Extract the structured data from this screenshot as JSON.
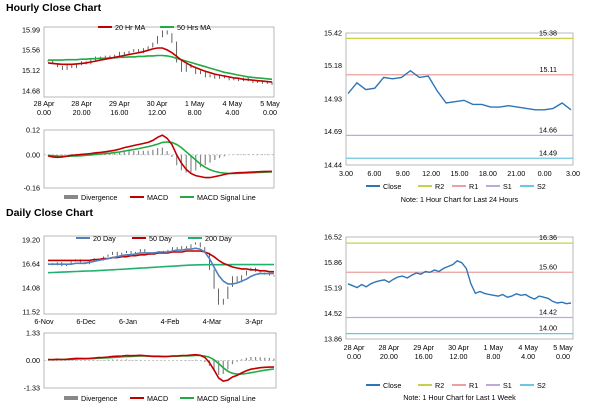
{
  "sections": {
    "hourly_title": "Hourly Close Chart",
    "daily_title": "Daily Close Chart"
  },
  "colors": {
    "price": "#222222",
    "ma_short": "#c00000",
    "ma_long": "#22aa44",
    "ma_200": "#20b070",
    "ma_20d": "#4f81bd",
    "close": "#2e75b6",
    "r2": "#c6d34a",
    "r1": "#e8a0a0",
    "s1": "#c0a8d8",
    "s2": "#6cc8e0",
    "divergence": "#888888",
    "macd": "#c00000",
    "signal": "#22aa44"
  },
  "chart_data": [
    {
      "id": "hourly-ma",
      "type": "line",
      "title": "Hourly Close Chart",
      "legend": [
        "20 Hr MA",
        "50 Hrs MA"
      ],
      "y_ticks": [
        "15.99",
        "15.56",
        "15.12",
        "14.68"
      ],
      "ylim": [
        14.55,
        16.05
      ],
      "x_labels": [
        [
          "28 Apr",
          "0.00"
        ],
        [
          "28 Apr",
          "20.00"
        ],
        [
          "29 Apr",
          "16.00"
        ],
        [
          "30 Apr",
          "12.00"
        ],
        [
          "1 May",
          "8.00"
        ],
        [
          "4 May",
          "4.00"
        ],
        [
          "5 May",
          "0.00"
        ]
      ],
      "price": [
        15.32,
        15.26,
        15.2,
        15.14,
        15.22,
        15.18,
        15.24,
        15.3,
        15.26,
        15.34,
        15.4,
        15.36,
        15.42,
        15.38,
        15.44,
        15.5,
        15.46,
        15.52,
        15.56,
        15.5,
        15.58,
        15.62,
        15.7,
        15.84,
        15.96,
        15.9,
        15.72,
        15.3,
        15.1,
        15.24,
        15.18,
        15.05,
        15.1,
        14.98,
        15.02,
        14.95,
        15.0,
        14.96,
        14.92,
        14.94,
        14.9,
        14.95,
        14.9,
        14.86,
        14.88,
        14.84,
        14.86,
        14.82
      ],
      "ma20": [
        15.28,
        15.27,
        15.26,
        15.25,
        15.25,
        15.25,
        15.26,
        15.27,
        15.28,
        15.3,
        15.32,
        15.34,
        15.36,
        15.38,
        15.4,
        15.42,
        15.44,
        15.46,
        15.48,
        15.5,
        15.52,
        15.55,
        15.58,
        15.6,
        15.6,
        15.56,
        15.5,
        15.42,
        15.34,
        15.28,
        15.22,
        15.18,
        15.14,
        15.1,
        15.07,
        15.04,
        15.02,
        15.0,
        14.98,
        14.96,
        14.95,
        14.93,
        14.92,
        14.91,
        14.9,
        14.89,
        14.88,
        14.87
      ],
      "ma50": [
        15.34,
        15.34,
        15.34,
        15.34,
        15.35,
        15.35,
        15.35,
        15.36,
        15.36,
        15.37,
        15.37,
        15.38,
        15.38,
        15.39,
        15.39,
        15.4,
        15.4,
        15.41,
        15.41,
        15.42,
        15.42,
        15.43,
        15.43,
        15.44,
        15.44,
        15.43,
        15.41,
        15.38,
        15.35,
        15.32,
        15.29,
        15.26,
        15.23,
        15.2,
        15.17,
        15.14,
        15.11,
        15.08,
        15.06,
        15.04,
        15.02,
        15.0,
        14.98,
        14.97,
        14.96,
        14.95,
        14.94,
        14.93
      ]
    },
    {
      "id": "hourly-macd",
      "type": "line",
      "legend": [
        "Divergence",
        "MACD",
        "MACD Signal Line"
      ],
      "y_ticks": [
        "0.12",
        "0.00",
        "-0.16"
      ],
      "ylim": [
        -0.16,
        0.12
      ],
      "macd": [
        -0.005,
        -0.01,
        -0.012,
        -0.01,
        -0.006,
        -0.002,
        0.0,
        0.002,
        0.004,
        0.006,
        0.01,
        0.012,
        0.015,
        0.018,
        0.022,
        0.028,
        0.035,
        0.04,
        0.045,
        0.05,
        0.055,
        0.06,
        0.07,
        0.085,
        0.095,
        0.08,
        0.05,
        0.0,
        -0.04,
        -0.07,
        -0.09,
        -0.1,
        -0.105,
        -0.11,
        -0.11,
        -0.105,
        -0.1,
        -0.095,
        -0.09,
        -0.088,
        -0.086,
        -0.085,
        -0.084,
        -0.083,
        -0.082,
        -0.081,
        -0.08,
        -0.08
      ],
      "signal": [
        -0.002,
        -0.004,
        -0.006,
        -0.007,
        -0.007,
        -0.006,
        -0.005,
        -0.004,
        -0.002,
        0.0,
        0.002,
        0.004,
        0.006,
        0.008,
        0.011,
        0.014,
        0.018,
        0.022,
        0.026,
        0.03,
        0.035,
        0.04,
        0.045,
        0.052,
        0.06,
        0.062,
        0.06,
        0.05,
        0.035,
        0.015,
        -0.005,
        -0.025,
        -0.045,
        -0.06,
        -0.072,
        -0.08,
        -0.085,
        -0.088,
        -0.09,
        -0.09,
        -0.089,
        -0.088,
        -0.087,
        -0.086,
        -0.085,
        -0.084,
        -0.083,
        -0.082
      ]
    },
    {
      "id": "hourly-levels",
      "type": "line",
      "title": "Note: 1 Hour Chart for Last 24 Hours",
      "y_ticks": [
        "15.42",
        "15.18",
        "14.93",
        "14.69",
        "14.44"
      ],
      "ylim": [
        14.44,
        15.42
      ],
      "x_labels": [
        "3.00",
        "6.00",
        "9.00",
        "12.00",
        "15.00",
        "18.00",
        "21.00",
        "0.00",
        "3.00"
      ],
      "legend": [
        "Close",
        "R2",
        "R1",
        "S1",
        "S2"
      ],
      "levels": {
        "R2": 15.38,
        "R1": 15.11,
        "S1": 14.66,
        "S2": 14.49
      },
      "level_labels": {
        "R2": "15.38",
        "R1": "15.11",
        "S1": "14.66",
        "S2": "14.49"
      },
      "close": [
        14.97,
        15.05,
        15.0,
        15.01,
        15.09,
        15.08,
        15.09,
        15.14,
        15.09,
        15.1,
        14.99,
        14.9,
        14.91,
        14.92,
        14.89,
        14.89,
        14.87,
        14.87,
        14.88,
        14.87,
        14.86,
        14.85,
        14.85,
        14.86,
        14.9,
        14.85
      ]
    },
    {
      "id": "daily-ma",
      "type": "line",
      "title": "Daily Close Chart",
      "legend": [
        "20 Day",
        "50 Day",
        "200 Day"
      ],
      "y_ticks": [
        "19.20",
        "16.64",
        "14.08",
        "11.52"
      ],
      "ylim": [
        11.3,
        19.6
      ],
      "x_labels": [
        "6-Nov",
        "6-Dec",
        "6-Jan",
        "4-Feb",
        "4-Mar",
        "3-Apr"
      ],
      "price": [
        16.7,
        16.5,
        16.8,
        16.4,
        16.6,
        16.9,
        17.1,
        16.8,
        16.6,
        16.9,
        17.2,
        17.0,
        17.4,
        17.6,
        17.9,
        17.5,
        17.8,
        18.0,
        17.7,
        17.9,
        18.2,
        17.8,
        17.6,
        17.9,
        18.0,
        17.8,
        18.1,
        18.4,
        18.2,
        18.5,
        18.3,
        18.7,
        18.9,
        18.4,
        17.8,
        16.0,
        14.0,
        12.3,
        12.9,
        14.2,
        15.3,
        14.7,
        15.4,
        15.9,
        16.2,
        15.8,
        15.7,
        15.5,
        15.4,
        15.3
      ],
      "ma20": [
        16.6,
        16.6,
        16.6,
        16.6,
        16.6,
        16.6,
        16.7,
        16.7,
        16.7,
        16.8,
        16.9,
        17.0,
        17.1,
        17.2,
        17.3,
        17.4,
        17.5,
        17.6,
        17.6,
        17.7,
        17.8,
        17.8,
        17.8,
        17.8,
        17.9,
        17.9,
        17.9,
        18.0,
        18.1,
        18.1,
        18.2,
        18.2,
        18.3,
        18.2,
        17.9,
        17.2,
        16.3,
        15.4,
        14.8,
        14.5,
        14.5,
        14.6,
        14.8,
        15.0,
        15.3,
        15.5,
        15.6,
        15.6,
        15.6,
        15.6
      ],
      "ma50": [
        17.0,
        17.0,
        17.0,
        17.0,
        17.0,
        17.0,
        17.0,
        17.0,
        17.0,
        17.0,
        17.1,
        17.1,
        17.2,
        17.2,
        17.3,
        17.3,
        17.4,
        17.4,
        17.5,
        17.5,
        17.6,
        17.6,
        17.7,
        17.7,
        17.8,
        17.8,
        17.8,
        17.9,
        17.9,
        17.9,
        18.0,
        18.0,
        18.0,
        18.0,
        17.9,
        17.7,
        17.4,
        17.0,
        16.7,
        16.5,
        16.3,
        16.2,
        16.1,
        16.1,
        16.0,
        16.0,
        15.9,
        15.9,
        15.8,
        15.8
      ],
      "ma200": [
        15.7,
        15.72,
        15.74,
        15.76,
        15.78,
        15.8,
        15.82,
        15.84,
        15.86,
        15.88,
        15.9,
        15.92,
        15.95,
        15.98,
        16.0,
        16.03,
        16.06,
        16.09,
        16.12,
        16.15,
        16.18,
        16.21,
        16.24,
        16.27,
        16.3,
        16.33,
        16.36,
        16.39,
        16.42,
        16.45,
        16.48,
        16.5,
        16.52,
        16.54,
        16.55,
        16.55,
        16.55,
        16.55,
        16.55,
        16.55,
        16.56,
        16.56,
        16.56,
        16.56,
        16.56,
        16.56,
        16.56,
        16.56,
        16.56,
        16.56
      ]
    },
    {
      "id": "daily-macd",
      "type": "line",
      "legend": [
        "Divergence",
        "MACD",
        "MACD Signal Line"
      ],
      "y_ticks": [
        "1.33",
        "0.00",
        "-1.33"
      ],
      "ylim": [
        -1.33,
        1.33
      ],
      "macd": [
        0.05,
        0.04,
        0.06,
        0.05,
        0.06,
        0.08,
        0.1,
        0.1,
        0.09,
        0.1,
        0.12,
        0.14,
        0.15,
        0.17,
        0.2,
        0.21,
        0.22,
        0.24,
        0.23,
        0.24,
        0.25,
        0.23,
        0.21,
        0.2,
        0.2,
        0.19,
        0.2,
        0.22,
        0.22,
        0.24,
        0.24,
        0.26,
        0.28,
        0.25,
        0.15,
        -0.1,
        -0.45,
        -0.85,
        -1.0,
        -0.95,
        -0.8,
        -0.72,
        -0.6,
        -0.5,
        -0.42,
        -0.38,
        -0.35,
        -0.33,
        -0.32,
        -0.32
      ],
      "signal": [
        0.04,
        0.04,
        0.05,
        0.05,
        0.05,
        0.06,
        0.07,
        0.08,
        0.08,
        0.09,
        0.1,
        0.11,
        0.12,
        0.13,
        0.15,
        0.16,
        0.18,
        0.19,
        0.2,
        0.21,
        0.22,
        0.22,
        0.22,
        0.21,
        0.21,
        0.2,
        0.2,
        0.21,
        0.21,
        0.22,
        0.22,
        0.23,
        0.24,
        0.24,
        0.22,
        0.16,
        0.04,
        -0.15,
        -0.35,
        -0.52,
        -0.62,
        -0.66,
        -0.66,
        -0.63,
        -0.59,
        -0.55,
        -0.51,
        -0.47,
        -0.44,
        -0.41
      ]
    },
    {
      "id": "daily-levels",
      "type": "line",
      "title": "Note: 1 Hour Chart for Last 1 Week",
      "y_ticks": [
        "16.52",
        "15.86",
        "15.19",
        "14.52",
        "13.86"
      ],
      "ylim": [
        13.86,
        16.52
      ],
      "x_labels": [
        [
          "28 Apr",
          "0.00"
        ],
        [
          "28 Apr",
          "20.00"
        ],
        [
          "29 Apr",
          "16.00"
        ],
        [
          "30 Apr",
          "12.00"
        ],
        [
          "1 May",
          "8.00"
        ],
        [
          "4 May",
          "4.00"
        ],
        [
          "5 May",
          "0.00"
        ]
      ],
      "legend": [
        "Close",
        "R2",
        "R1",
        "S1",
        "S2"
      ],
      "levels": {
        "R2": 16.36,
        "R1": 15.6,
        "S1": 14.42,
        "S2": 14.0
      },
      "level_labels": {
        "R2": "16.36",
        "R1": "15.60",
        "S1": "14.42",
        "S2": "14.00"
      },
      "close": [
        15.3,
        15.25,
        15.2,
        15.28,
        15.22,
        15.3,
        15.35,
        15.38,
        15.4,
        15.34,
        15.42,
        15.48,
        15.5,
        15.45,
        15.52,
        15.58,
        15.55,
        15.62,
        15.6,
        15.66,
        15.62,
        15.7,
        15.75,
        15.8,
        15.9,
        15.85,
        15.7,
        15.3,
        15.05,
        15.1,
        15.05,
        15.02,
        15.0,
        14.98,
        15.02,
        14.95,
        14.98,
        15.04,
        15.0,
        15.02,
        14.95,
        14.9,
        14.98,
        14.95,
        14.92,
        14.84,
        14.8,
        14.82,
        14.78,
        14.8
      ]
    }
  ]
}
